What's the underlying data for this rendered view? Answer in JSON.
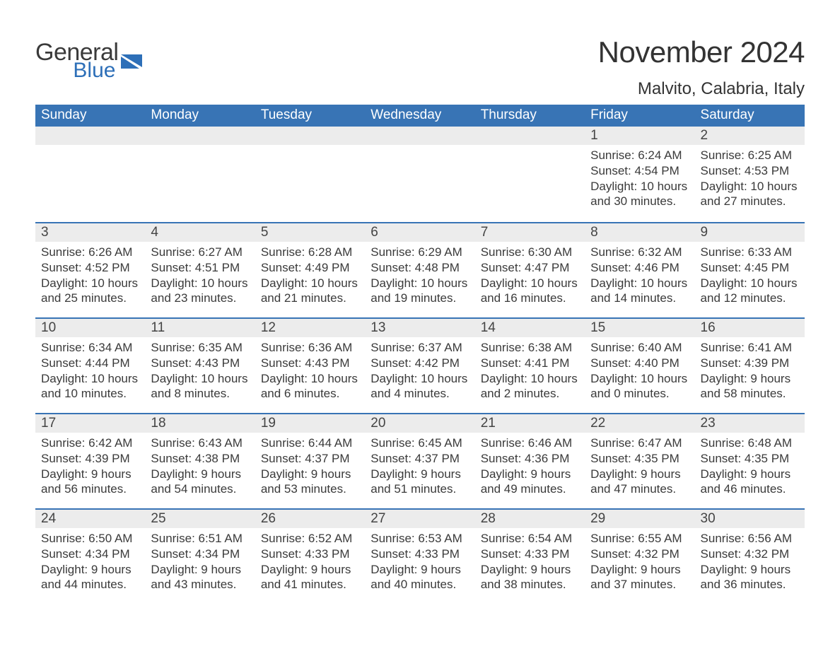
{
  "logo": {
    "general": "General",
    "blue": "Blue",
    "brand_color": "#2d6fb8"
  },
  "header": {
    "month_title": "November 2024",
    "location": "Malvito, Calabria, Italy"
  },
  "calendar": {
    "header_bg": "#3874b5",
    "header_text_color": "#ffffff",
    "daynum_bg": "#ececec",
    "row_border_color": "#3874b5",
    "body_text_color": "#3a3a3a",
    "day_headers": [
      "Sunday",
      "Monday",
      "Tuesday",
      "Wednesday",
      "Thursday",
      "Friday",
      "Saturday"
    ],
    "weeks": [
      [
        null,
        null,
        null,
        null,
        null,
        {
          "n": "1",
          "sunrise": "6:24 AM",
          "sunset": "4:54 PM",
          "daylight": "10 hours and 30 minutes."
        },
        {
          "n": "2",
          "sunrise": "6:25 AM",
          "sunset": "4:53 PM",
          "daylight": "10 hours and 27 minutes."
        }
      ],
      [
        {
          "n": "3",
          "sunrise": "6:26 AM",
          "sunset": "4:52 PM",
          "daylight": "10 hours and 25 minutes."
        },
        {
          "n": "4",
          "sunrise": "6:27 AM",
          "sunset": "4:51 PM",
          "daylight": "10 hours and 23 minutes."
        },
        {
          "n": "5",
          "sunrise": "6:28 AM",
          "sunset": "4:49 PM",
          "daylight": "10 hours and 21 minutes."
        },
        {
          "n": "6",
          "sunrise": "6:29 AM",
          "sunset": "4:48 PM",
          "daylight": "10 hours and 19 minutes."
        },
        {
          "n": "7",
          "sunrise": "6:30 AM",
          "sunset": "4:47 PM",
          "daylight": "10 hours and 16 minutes."
        },
        {
          "n": "8",
          "sunrise": "6:32 AM",
          "sunset": "4:46 PM",
          "daylight": "10 hours and 14 minutes."
        },
        {
          "n": "9",
          "sunrise": "6:33 AM",
          "sunset": "4:45 PM",
          "daylight": "10 hours and 12 minutes."
        }
      ],
      [
        {
          "n": "10",
          "sunrise": "6:34 AM",
          "sunset": "4:44 PM",
          "daylight": "10 hours and 10 minutes."
        },
        {
          "n": "11",
          "sunrise": "6:35 AM",
          "sunset": "4:43 PM",
          "daylight": "10 hours and 8 minutes."
        },
        {
          "n": "12",
          "sunrise": "6:36 AM",
          "sunset": "4:43 PM",
          "daylight": "10 hours and 6 minutes."
        },
        {
          "n": "13",
          "sunrise": "6:37 AM",
          "sunset": "4:42 PM",
          "daylight": "10 hours and 4 minutes."
        },
        {
          "n": "14",
          "sunrise": "6:38 AM",
          "sunset": "4:41 PM",
          "daylight": "10 hours and 2 minutes."
        },
        {
          "n": "15",
          "sunrise": "6:40 AM",
          "sunset": "4:40 PM",
          "daylight": "10 hours and 0 minutes."
        },
        {
          "n": "16",
          "sunrise": "6:41 AM",
          "sunset": "4:39 PM",
          "daylight": "9 hours and 58 minutes."
        }
      ],
      [
        {
          "n": "17",
          "sunrise": "6:42 AM",
          "sunset": "4:39 PM",
          "daylight": "9 hours and 56 minutes."
        },
        {
          "n": "18",
          "sunrise": "6:43 AM",
          "sunset": "4:38 PM",
          "daylight": "9 hours and 54 minutes."
        },
        {
          "n": "19",
          "sunrise": "6:44 AM",
          "sunset": "4:37 PM",
          "daylight": "9 hours and 53 minutes."
        },
        {
          "n": "20",
          "sunrise": "6:45 AM",
          "sunset": "4:37 PM",
          "daylight": "9 hours and 51 minutes."
        },
        {
          "n": "21",
          "sunrise": "6:46 AM",
          "sunset": "4:36 PM",
          "daylight": "9 hours and 49 minutes."
        },
        {
          "n": "22",
          "sunrise": "6:47 AM",
          "sunset": "4:35 PM",
          "daylight": "9 hours and 47 minutes."
        },
        {
          "n": "23",
          "sunrise": "6:48 AM",
          "sunset": "4:35 PM",
          "daylight": "9 hours and 46 minutes."
        }
      ],
      [
        {
          "n": "24",
          "sunrise": "6:50 AM",
          "sunset": "4:34 PM",
          "daylight": "9 hours and 44 minutes."
        },
        {
          "n": "25",
          "sunrise": "6:51 AM",
          "sunset": "4:34 PM",
          "daylight": "9 hours and 43 minutes."
        },
        {
          "n": "26",
          "sunrise": "6:52 AM",
          "sunset": "4:33 PM",
          "daylight": "9 hours and 41 minutes."
        },
        {
          "n": "27",
          "sunrise": "6:53 AM",
          "sunset": "4:33 PM",
          "daylight": "9 hours and 40 minutes."
        },
        {
          "n": "28",
          "sunrise": "6:54 AM",
          "sunset": "4:33 PM",
          "daylight": "9 hours and 38 minutes."
        },
        {
          "n": "29",
          "sunrise": "6:55 AM",
          "sunset": "4:32 PM",
          "daylight": "9 hours and 37 minutes."
        },
        {
          "n": "30",
          "sunrise": "6:56 AM",
          "sunset": "4:32 PM",
          "daylight": "9 hours and 36 minutes."
        }
      ]
    ],
    "labels": {
      "sunrise": "Sunrise:",
      "sunset": "Sunset:",
      "daylight": "Daylight:"
    }
  }
}
